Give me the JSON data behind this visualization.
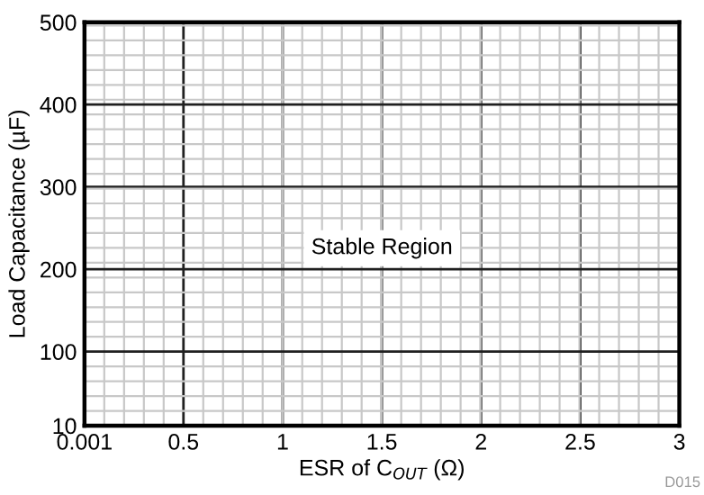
{
  "chart_data": {
    "type": "line",
    "xlabel": "ESR of C$_{OUT}$ (Ω)",
    "ylabel": "Load Capacitance (µF)",
    "xlim": [
      0.001,
      3
    ],
    "xticks": [
      0.001,
      0.5,
      1,
      1.5,
      2,
      2.5,
      3
    ],
    "ylim": [
      10,
      500
    ],
    "yticks": [
      10,
      100,
      200,
      300,
      400,
      500
    ],
    "grid": true,
    "annotations": [
      "Stable Region",
      "D015"
    ]
  }
}
